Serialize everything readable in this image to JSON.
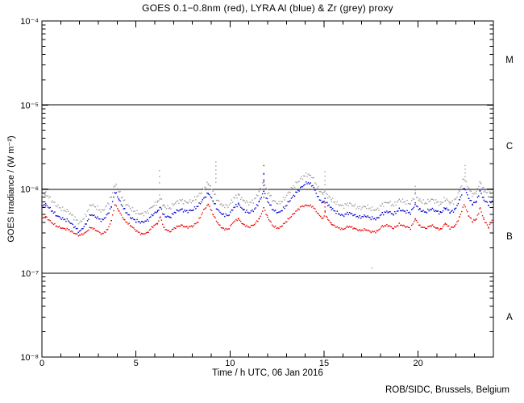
{
  "title": "GOES 0.1−0.8nm (red), LYRA Al (blue) & Zr (grey) proxy",
  "footer": "ROB/SIDC, Brussels, Belgium",
  "axes": {
    "x_ticks_major": [
      0,
      5,
      10,
      15,
      20
    ],
    "x_minor_step_h": 1,
    "y_decades": [
      -4,
      -5,
      -6,
      -7,
      -8
    ],
    "y_tick_labels": [
      "10⁻⁴",
      "10⁻⁵",
      "10⁻⁶",
      "10⁻⁷",
      "10⁻⁸"
    ]
  },
  "chart_data": {
    "type": "scatter",
    "title": "GOES 0.1−0.8nm (red), LYRA Al (blue) & Zr (grey) proxy",
    "xlabel": "Time / h UTC, 06 Jan 2016",
    "ylabel": "GOES Irradiance / (W m⁻²)",
    "xlim": [
      0,
      24
    ],
    "ylog10_range": [
      -8,
      -4
    ],
    "grid": false,
    "reference_lines_wm2": [
      1e-05,
      1e-06,
      1e-07
    ],
    "flare_classes": [
      "M",
      "C",
      "B",
      "A"
    ],
    "values_unit": "1e-7 W m-2",
    "series": [
      {
        "key": "goes",
        "name": "GOES 0.1-0.8nm",
        "color": "#f00000",
        "points": [
          [
            0,
            4.4
          ],
          [
            0.2,
            4.7
          ],
          [
            0.5,
            4.0
          ],
          [
            0.8,
            3.6
          ],
          [
            1.1,
            3.4
          ],
          [
            1.4,
            3.3
          ],
          [
            1.7,
            3.0
          ],
          [
            2.0,
            2.8
          ],
          [
            2.3,
            3.0
          ],
          [
            2.6,
            3.5
          ],
          [
            2.9,
            3.2
          ],
          [
            3.2,
            2.9
          ],
          [
            3.5,
            3.3
          ],
          [
            3.7,
            4.3
          ],
          [
            3.9,
            6.6
          ],
          [
            4.1,
            5.4
          ],
          [
            4.4,
            4.2
          ],
          [
            4.7,
            3.7
          ],
          [
            5.0,
            3.2
          ],
          [
            5.3,
            2.9
          ],
          [
            5.6,
            3.0
          ],
          [
            5.9,
            3.6
          ],
          [
            6.15,
            3.9
          ],
          [
            6.3,
            4.6
          ],
          [
            6.5,
            3.4
          ],
          [
            6.8,
            3.1
          ],
          [
            7.1,
            3.5
          ],
          [
            7.4,
            3.7
          ],
          [
            7.7,
            3.5
          ],
          [
            8.0,
            3.6
          ],
          [
            8.3,
            4.1
          ],
          [
            8.6,
            5.6
          ],
          [
            8.85,
            6.6
          ],
          [
            9.1,
            5.0
          ],
          [
            9.35,
            3.9
          ],
          [
            9.6,
            3.4
          ],
          [
            9.9,
            3.3
          ],
          [
            10.2,
            4.1
          ],
          [
            10.45,
            4.4
          ],
          [
            10.7,
            3.8
          ],
          [
            11.0,
            3.5
          ],
          [
            11.3,
            3.8
          ],
          [
            11.55,
            4.4
          ],
          [
            11.8,
            6.0
          ],
          [
            12.0,
            4.6
          ],
          [
            12.3,
            3.6
          ],
          [
            12.6,
            3.4
          ],
          [
            12.9,
            3.9
          ],
          [
            13.2,
            4.6
          ],
          [
            13.5,
            5.4
          ],
          [
            13.8,
            6.2
          ],
          [
            14.1,
            6.4
          ],
          [
            14.4,
            6.2
          ],
          [
            14.7,
            5.0
          ],
          [
            14.95,
            4.4
          ],
          [
            15.05,
            5.2
          ],
          [
            15.2,
            4.4
          ],
          [
            15.4,
            3.8
          ],
          [
            15.7,
            3.5
          ],
          [
            16.0,
            3.3
          ],
          [
            16.3,
            3.6
          ],
          [
            16.6,
            3.4
          ],
          [
            16.9,
            3.2
          ],
          [
            17.2,
            3.3
          ],
          [
            17.5,
            3.1
          ],
          [
            17.8,
            3.1
          ],
          [
            18.1,
            3.6
          ],
          [
            18.4,
            3.7
          ],
          [
            18.7,
            3.4
          ],
          [
            19.0,
            3.8
          ],
          [
            19.3,
            3.6
          ],
          [
            19.6,
            3.4
          ],
          [
            19.85,
            4.4
          ],
          [
            20.1,
            3.6
          ],
          [
            20.4,
            3.4
          ],
          [
            20.7,
            3.7
          ],
          [
            21.0,
            3.4
          ],
          [
            21.2,
            3.3
          ],
          [
            21.45,
            3.9
          ],
          [
            21.7,
            3.4
          ],
          [
            21.95,
            3.6
          ],
          [
            22.2,
            4.6
          ],
          [
            22.45,
            6.6
          ],
          [
            22.7,
            4.8
          ],
          [
            22.9,
            4.1
          ],
          [
            23.1,
            4.4
          ],
          [
            23.3,
            5.9
          ],
          [
            23.5,
            4.3
          ],
          [
            23.75,
            3.5
          ],
          [
            23.95,
            4.3
          ]
        ]
      },
      {
        "key": "al",
        "name": "LYRA Al proxy",
        "color": "#0000d0",
        "points": [
          [
            0,
            6.2
          ],
          [
            0.2,
            6.6
          ],
          [
            0.5,
            5.6
          ],
          [
            0.8,
            4.8
          ],
          [
            1.1,
            4.4
          ],
          [
            1.4,
            4.2
          ],
          [
            1.7,
            3.6
          ],
          [
            2.0,
            3.1
          ],
          [
            2.3,
            3.7
          ],
          [
            2.6,
            5.0
          ],
          [
            2.9,
            4.6
          ],
          [
            3.2,
            4.2
          ],
          [
            3.5,
            5.0
          ],
          [
            3.7,
            6.3
          ],
          [
            3.9,
            9.3
          ],
          [
            4.1,
            7.4
          ],
          [
            4.4,
            5.6
          ],
          [
            4.7,
            4.6
          ],
          [
            5.0,
            4.2
          ],
          [
            5.3,
            4.0
          ],
          [
            5.6,
            4.2
          ],
          [
            5.9,
            5.0
          ],
          [
            6.15,
            5.4
          ],
          [
            6.3,
            6.0
          ],
          [
            6.5,
            4.8
          ],
          [
            6.8,
            4.6
          ],
          [
            7.1,
            5.4
          ],
          [
            7.4,
            5.7
          ],
          [
            7.7,
            5.4
          ],
          [
            8.0,
            5.6
          ],
          [
            8.3,
            6.3
          ],
          [
            8.6,
            7.7
          ],
          [
            8.85,
            9.0
          ],
          [
            9.1,
            7.2
          ],
          [
            9.35,
            5.6
          ],
          [
            9.6,
            5.0
          ],
          [
            9.9,
            4.8
          ],
          [
            10.2,
            6.0
          ],
          [
            10.45,
            6.6
          ],
          [
            10.7,
            5.7
          ],
          [
            11.0,
            5.2
          ],
          [
            11.3,
            5.7
          ],
          [
            11.55,
            7.0
          ],
          [
            11.8,
            9.5
          ],
          [
            12.0,
            7.2
          ],
          [
            12.3,
            5.6
          ],
          [
            12.6,
            5.2
          ],
          [
            12.9,
            6.0
          ],
          [
            13.2,
            7.4
          ],
          [
            13.5,
            8.9
          ],
          [
            13.8,
            10.5
          ],
          [
            14.1,
            12.0
          ],
          [
            14.4,
            11.0
          ],
          [
            14.7,
            7.8
          ],
          [
            14.95,
            6.8
          ],
          [
            15.05,
            7.6
          ],
          [
            15.2,
            6.6
          ],
          [
            15.4,
            5.8
          ],
          [
            15.7,
            5.2
          ],
          [
            16.0,
            4.8
          ],
          [
            16.3,
            5.2
          ],
          [
            16.6,
            4.9
          ],
          [
            16.9,
            4.6
          ],
          [
            17.2,
            4.8
          ],
          [
            17.5,
            4.5
          ],
          [
            17.8,
            4.4
          ],
          [
            18.1,
            5.1
          ],
          [
            18.4,
            5.4
          ],
          [
            18.7,
            5.0
          ],
          [
            19.0,
            5.7
          ],
          [
            19.3,
            5.4
          ],
          [
            19.6,
            5.2
          ],
          [
            19.85,
            6.6
          ],
          [
            20.1,
            5.6
          ],
          [
            20.4,
            5.3
          ],
          [
            20.7,
            5.8
          ],
          [
            21.0,
            5.4
          ],
          [
            21.2,
            5.2
          ],
          [
            21.45,
            6.0
          ],
          [
            21.7,
            5.3
          ],
          [
            21.95,
            5.6
          ],
          [
            22.2,
            7.4
          ],
          [
            22.45,
            10.5
          ],
          [
            22.7,
            7.7
          ],
          [
            22.9,
            6.6
          ],
          [
            23.1,
            7.2
          ],
          [
            23.3,
            9.6
          ],
          [
            23.5,
            7.4
          ],
          [
            23.75,
            6.6
          ],
          [
            23.95,
            7.2
          ]
        ]
      },
      {
        "key": "zr",
        "name": "LYRA Zr proxy",
        "color": "#a0a0a0",
        "points": [
          [
            0,
            8.0
          ],
          [
            0.2,
            8.9
          ],
          [
            0.5,
            7.4
          ],
          [
            0.8,
            6.3
          ],
          [
            1.1,
            5.7
          ],
          [
            1.4,
            5.4
          ],
          [
            1.7,
            4.6
          ],
          [
            2.0,
            3.9
          ],
          [
            2.3,
            4.7
          ],
          [
            2.6,
            6.6
          ],
          [
            2.9,
            6.0
          ],
          [
            3.2,
            5.4
          ],
          [
            3.5,
            6.6
          ],
          [
            3.7,
            8.3
          ],
          [
            3.9,
            11.5
          ],
          [
            4.1,
            9.3
          ],
          [
            4.4,
            7.0
          ],
          [
            4.7,
            5.9
          ],
          [
            5.0,
            5.3
          ],
          [
            5.3,
            5.0
          ],
          [
            5.6,
            5.3
          ],
          [
            5.9,
            6.3
          ],
          [
            6.15,
            6.9
          ],
          [
            6.3,
            7.7
          ],
          [
            6.5,
            6.2
          ],
          [
            6.8,
            5.9
          ],
          [
            7.1,
            6.9
          ],
          [
            7.4,
            7.3
          ],
          [
            7.7,
            6.9
          ],
          [
            8.0,
            7.2
          ],
          [
            8.3,
            8.3
          ],
          [
            8.6,
            10.0
          ],
          [
            8.85,
            11.8
          ],
          [
            9.1,
            9.3
          ],
          [
            9.35,
            7.2
          ],
          [
            9.6,
            6.4
          ],
          [
            9.9,
            6.2
          ],
          [
            10.2,
            7.7
          ],
          [
            10.45,
            8.5
          ],
          [
            10.7,
            7.4
          ],
          [
            11.0,
            6.7
          ],
          [
            11.3,
            7.4
          ],
          [
            11.55,
            9.3
          ],
          [
            11.8,
            12.3
          ],
          [
            12.0,
            9.3
          ],
          [
            12.3,
            7.2
          ],
          [
            12.6,
            6.7
          ],
          [
            12.9,
            7.7
          ],
          [
            13.2,
            9.6
          ],
          [
            13.5,
            11.5
          ],
          [
            13.8,
            13.5
          ],
          [
            14.1,
            15.0
          ],
          [
            14.4,
            13.8
          ],
          [
            14.7,
            10.0
          ],
          [
            14.95,
            8.7
          ],
          [
            15.05,
            9.6
          ],
          [
            15.2,
            8.3
          ],
          [
            15.4,
            7.4
          ],
          [
            15.7,
            6.7
          ],
          [
            16.0,
            6.2
          ],
          [
            16.3,
            6.7
          ],
          [
            16.6,
            6.3
          ],
          [
            16.9,
            5.9
          ],
          [
            17.2,
            6.2
          ],
          [
            17.5,
            5.8
          ],
          [
            17.8,
            5.6
          ],
          [
            18.1,
            6.5
          ],
          [
            18.4,
            7.0
          ],
          [
            18.7,
            6.4
          ],
          [
            19.0,
            7.4
          ],
          [
            19.3,
            7.0
          ],
          [
            19.6,
            6.7
          ],
          [
            19.85,
            8.5
          ],
          [
            20.1,
            7.2
          ],
          [
            20.4,
            6.8
          ],
          [
            20.7,
            7.5
          ],
          [
            21.0,
            7.0
          ],
          [
            21.2,
            6.7
          ],
          [
            21.45,
            7.7
          ],
          [
            21.7,
            6.8
          ],
          [
            21.95,
            7.2
          ],
          [
            22.2,
            9.6
          ],
          [
            22.45,
            13.5
          ],
          [
            22.7,
            10.0
          ],
          [
            22.9,
            8.5
          ],
          [
            23.1,
            9.3
          ],
          [
            23.3,
            12.4
          ],
          [
            23.5,
            9.6
          ],
          [
            23.75,
            8.5
          ],
          [
            23.95,
            9.3
          ]
        ]
      }
    ],
    "spike_columns": [
      {
        "series": "zr",
        "h": 6.25,
        "vmin": 8.5,
        "vmax": 16.5,
        "n": 5
      },
      {
        "series": "zr",
        "h": 9.25,
        "vmin": 12.0,
        "vmax": 21.0,
        "n": 6
      },
      {
        "series": "goes",
        "h": 11.8,
        "vmin": 8.0,
        "vmax": 19.0,
        "n": 5
      },
      {
        "series": "al",
        "h": 11.8,
        "vmin": 11.0,
        "vmax": 15.0,
        "n": 3
      },
      {
        "series": "zr",
        "h": 15.05,
        "vmin": 10.0,
        "vmax": 16.0,
        "n": 5
      },
      {
        "series": "goes",
        "h": 15.05,
        "vmin": 5.5,
        "vmax": 6.8,
        "n": 3
      },
      {
        "series": "zr",
        "h": 19.85,
        "vmin": 8.8,
        "vmax": 10.7,
        "n": 3
      },
      {
        "series": "zr",
        "h": 22.5,
        "vmin": 14.0,
        "vmax": 19.0,
        "n": 4
      }
    ],
    "outlier_points": [
      {
        "series": "zr",
        "h": 17.55,
        "v": 1.15
      }
    ]
  }
}
